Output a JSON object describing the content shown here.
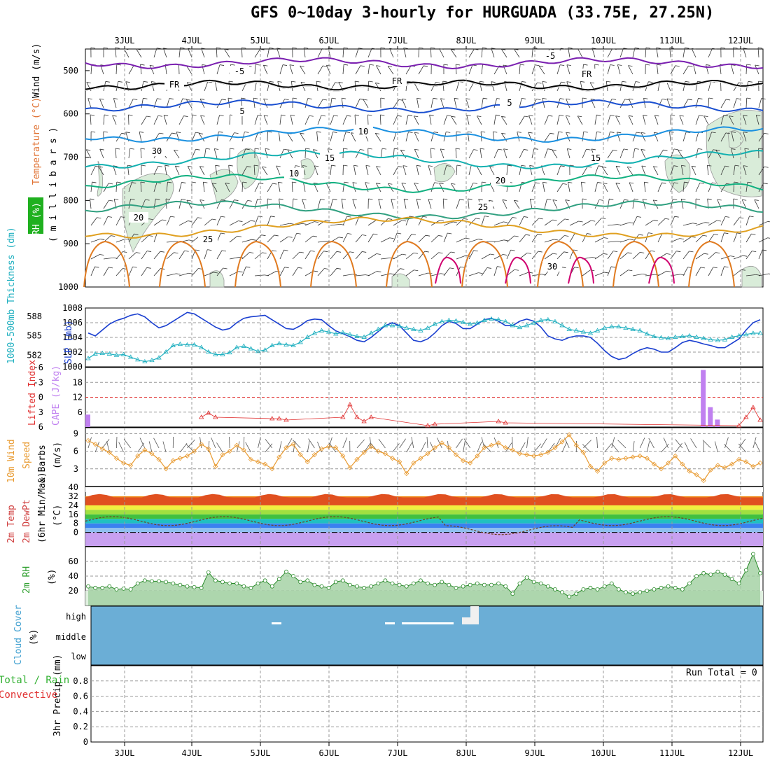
{
  "title": "GFS 0~10day 3-hourly for HURGUADA (33.75E, 27.25N)",
  "days": [
    "3JUL",
    "4JUL",
    "5JUL",
    "6JUL",
    "7JUL",
    "8JUL",
    "9JUL",
    "10JUL",
    "11JUL",
    "12JUL"
  ],
  "run_total": "Run Total = 0",
  "colors": {
    "temp_warm": "#e07a1f",
    "temp_hot": "#d0006f",
    "temp_cool": "#1ab0a0",
    "slp": "#1a3fd0",
    "thickness": "#20b0c0",
    "lifted": "#e03030",
    "cape": "#c080f0",
    "wind10": "#e89a30",
    "rh2m": "#30a030",
    "cloud": "#6baed6"
  },
  "panels": {
    "upper": {
      "ylabel_rh": "RH (%)",
      "ylabel_temp": "Temperature (°C)",
      "ylabel_wind": "Wind (m/s)",
      "ylabel_p": "( m i l l i b a r s )",
      "ticks": [
        "500",
        "600",
        "700",
        "800",
        "900",
        "1000"
      ],
      "contour_labels": [
        "-5",
        "-5",
        "FR",
        "FR",
        "FR",
        "5",
        "5",
        "10",
        "15",
        "15",
        "20",
        "20",
        "25",
        "25",
        "30",
        "30",
        "10"
      ]
    },
    "slp": {
      "ylabel_thk": "1000-500mb Thickness (dm)",
      "ylabel_slp": "SLP (mb)",
      "left_ticks": [
        "588",
        "585",
        "582"
      ],
      "right_ticks": [
        "1008",
        "1006",
        "1004",
        "1002",
        "1000"
      ]
    },
    "cape": {
      "ylabel_li": "Lifted Index",
      "ylabel_cape": "CAPE (J/kg)",
      "left_ticks": [
        "-6",
        "-3",
        "0",
        "3",
        "6"
      ],
      "right_ticks": [
        "18",
        "12",
        "6"
      ]
    },
    "wind10": {
      "ylabel_a": "10m Wind",
      "ylabel_b": "Speed",
      "ylabel_c": "& Barbs",
      "ylabel_unit": "(m/s)",
      "ticks": [
        "9",
        "6",
        "3"
      ]
    },
    "temp2m": {
      "ylabel_a": "2m Temp",
      "ylabel_b": "2m DewPt",
      "ylabel_c": "(6hr Min/Max)",
      "ylabel_unit": "(°C)",
      "ticks": [
        "40",
        "32",
        "24",
        "16",
        "8",
        "0"
      ]
    },
    "rh2m": {
      "ylabel": "2m RH",
      "ylabel_unit": "(%)",
      "ticks": [
        "60",
        "40",
        "20"
      ]
    },
    "cloud": {
      "ylabel": "Cloud Cover",
      "ylabel_unit": "(%)",
      "levels": [
        "high",
        "middle",
        "low"
      ]
    },
    "precip": {
      "ylabel_a": "Total / Rain",
      "ylabel_b": "Convective",
      "ylabel_c": "3hr Precip (mm)",
      "ticks": [
        "0.8",
        "0.6",
        "0.4",
        "0.2",
        "0"
      ]
    }
  },
  "chart_data": [
    {
      "type": "line",
      "title": "SLP (mb) and 1000-500mb Thickness (dm)",
      "series": [
        {
          "name": "SLP (mb)",
          "values": [
            1004.6,
            1004.2,
            1005.0,
            1005.8,
            1006.3,
            1006.6,
            1007.0,
            1007.2,
            1006.8,
            1006.0,
            1005.3,
            1005.6,
            1006.2,
            1006.8,
            1007.4,
            1007.2,
            1006.6,
            1006.0,
            1005.4,
            1005.0,
            1005.2,
            1006.0,
            1006.6,
            1006.8,
            1006.9,
            1007.0,
            1006.4,
            1005.8,
            1005.2,
            1005.1,
            1005.6,
            1006.3,
            1006.5,
            1006.4,
            1005.6,
            1004.9,
            1004.5,
            1004.1,
            1003.6,
            1003.4,
            1004.0,
            1004.8,
            1005.6,
            1006.0,
            1005.6,
            1004.6,
            1003.6,
            1003.4,
            1003.8,
            1004.6,
            1005.6,
            1006.2,
            1005.9,
            1005.2,
            1005.2,
            1005.8,
            1006.4,
            1006.6,
            1006.2,
            1005.6,
            1005.6,
            1006.2,
            1006.5,
            1006.2,
            1005.4,
            1004.2,
            1003.8,
            1003.6,
            1004.0,
            1004.2,
            1004.2,
            1004.0,
            1003.2,
            1002.2,
            1001.4,
            1001.0,
            1001.2,
            1001.8,
            1002.3,
            1002.6,
            1002.4,
            1002.0,
            1002.0,
            1002.6,
            1003.3,
            1003.6,
            1003.4,
            1003.1,
            1002.9,
            1002.6,
            1002.6,
            1003.2,
            1003.8,
            1005.0,
            1006.0,
            1006.4
          ]
        },
        {
          "name": "1000-500mb Thickness (dm)",
          "values": [
            581.5,
            582.2,
            582.3,
            582.2,
            582.0,
            582.1,
            581.7,
            581.3,
            581.0,
            581.2,
            581.6,
            582.5,
            583.5,
            583.7,
            583.6,
            583.6,
            583.2,
            582.5,
            582.1,
            582.1,
            582.4,
            583.2,
            583.4,
            583.0,
            582.6,
            582.8,
            583.5,
            583.8,
            583.6,
            583.5,
            584.0,
            584.8,
            585.4,
            585.8,
            585.6,
            585.3,
            585.5,
            585.2,
            584.9,
            584.8,
            585.4,
            586.0,
            586.6,
            586.6,
            586.5,
            586.2,
            586.0,
            585.8,
            586.2,
            586.8,
            587.2,
            587.4,
            587.3,
            587.1,
            586.8,
            587.0,
            587.4,
            587.6,
            587.5,
            587.2,
            586.6,
            586.3,
            586.6,
            587.0,
            587.4,
            587.5,
            587.2,
            586.6,
            586.0,
            585.8,
            585.6,
            585.4,
            585.8,
            586.2,
            586.4,
            586.4,
            586.2,
            586.0,
            585.8,
            585.3,
            584.9,
            584.7,
            584.6,
            584.8,
            584.9,
            585.0,
            584.8,
            584.6,
            584.4,
            584.3,
            584.4,
            584.8,
            585.0,
            585.2,
            585.4,
            585.4
          ]
        }
      ]
    },
    {
      "type": "bar",
      "title": "CAPE (J/kg)",
      "series": [
        {
          "name": "CAPE (J/kg)",
          "points": [
            [
              0,
              5
            ],
            [
              87,
              23
            ],
            [
              88,
              8
            ],
            [
              89,
              3
            ]
          ]
        }
      ]
    },
    {
      "type": "line",
      "title": "10m Wind Speed (m/s)",
      "series": [
        {
          "name": "10m Wind Speed (m/s)",
          "values": [
            7.8,
            7.2,
            6.4,
            5.8,
            4.8,
            4.0,
            3.6,
            5.2,
            6.2,
            5.6,
            4.6,
            3.0,
            4.4,
            4.8,
            5.2,
            6.0,
            7.2,
            6.4,
            3.4,
            5.4,
            6.0,
            7.0,
            6.2,
            4.6,
            4.2,
            3.8,
            3.0,
            5.0,
            6.6,
            7.2,
            5.4,
            4.2,
            5.4,
            6.4,
            6.8,
            6.6,
            5.2,
            3.2,
            4.6,
            5.8,
            6.8,
            6.0,
            5.6,
            4.8,
            4.2,
            2.2,
            4.0,
            4.8,
            5.6,
            6.6,
            7.4,
            6.6,
            5.4,
            4.4,
            4.0,
            5.2,
            6.6,
            7.0,
            7.4,
            6.6,
            6.2,
            5.6,
            5.4,
            5.2,
            5.4,
            5.8,
            6.6,
            7.6,
            8.8,
            7.0,
            5.8,
            3.4,
            2.6,
            4.0,
            4.8,
            4.6,
            4.8,
            5.0,
            5.2,
            4.8,
            3.8,
            3.0,
            4.0,
            5.2,
            3.8,
            2.6,
            2.0,
            1.0,
            2.8,
            3.6,
            3.2,
            3.8,
            4.6,
            4.2,
            3.4,
            4.0
          ]
        }
      ]
    },
    {
      "type": "area",
      "title": "2m RH (%)",
      "series": [
        {
          "name": "2m RH (%)",
          "values": [
            26,
            24,
            24,
            26,
            22,
            23,
            22,
            30,
            34,
            33,
            33,
            32,
            30,
            28,
            26,
            25,
            24,
            45,
            34,
            32,
            30,
            30,
            26,
            24,
            30,
            34,
            26,
            36,
            46,
            40,
            32,
            34,
            28,
            26,
            24,
            32,
            34,
            28,
            26,
            24,
            26,
            30,
            34,
            30,
            28,
            26,
            30,
            34,
            30,
            28,
            32,
            28,
            24,
            26,
            28,
            30,
            28,
            28,
            30,
            26,
            16,
            30,
            38,
            32,
            30,
            26,
            22,
            18,
            12,
            16,
            22,
            24,
            22,
            26,
            30,
            22,
            18,
            16,
            18,
            20,
            22,
            24,
            26,
            24,
            22,
            30,
            40,
            44,
            42,
            46,
            42,
            36,
            30,
            48,
            70,
            44
          ]
        }
      ]
    }
  ]
}
